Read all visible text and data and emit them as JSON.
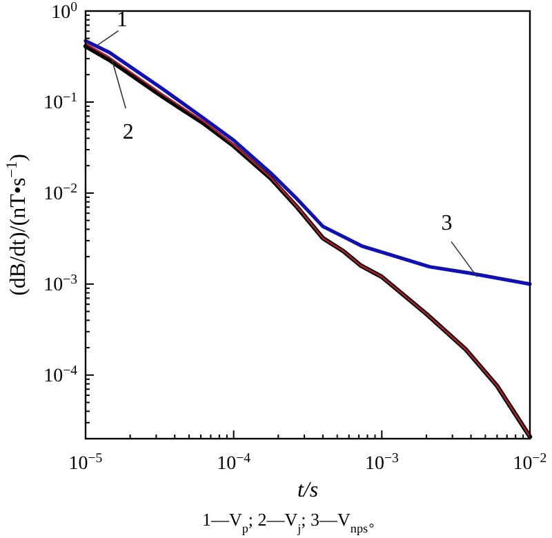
{
  "chart_data": {
    "type": "line",
    "xlabel": "t/s",
    "ylabel": "(dB/dt)/(nT•s$^{−1}$)",
    "log": "xy",
    "grid": false,
    "line_style": "solid",
    "marker": "none",
    "xlim": [
      1e-05,
      0.01
    ],
    "ylim": [
      2e-05,
      1
    ],
    "xticks": [
      {
        "value": 1e-05,
        "label": "10$^{−5}$"
      },
      {
        "value": 0.0001,
        "label": "10$^{−4}$"
      },
      {
        "value": 0.001,
        "label": "10$^{−3}$"
      },
      {
        "value": 0.01,
        "label": "10$^{−2}$"
      }
    ],
    "yticks": [
      {
        "value": 0.0001,
        "label": "10$^{−4}$"
      },
      {
        "value": 0.001,
        "label": "10$^{−3}$"
      },
      {
        "value": 0.01,
        "label": "10$^{−2}$"
      },
      {
        "value": 0.1,
        "label": "10$^{−1}$"
      },
      {
        "value": 1,
        "label": "10$^{0}$"
      }
    ],
    "series": [
      {
        "color": "#000000",
        "x": [
          1e-05,
          1.45e-05,
          3.3e-05,
          6.3e-05,
          0.0001,
          0.000178,
          0.00027,
          0.0004,
          0.00055,
          0.00072,
          0.001,
          0.002,
          0.0037,
          0.006,
          0.01
        ],
        "values": [
          0.41,
          0.29,
          0.115,
          0.058,
          0.033,
          0.0145,
          0.0069,
          0.0032,
          0.0023,
          0.0016,
          0.0012,
          0.00047,
          0.00019,
          7.6e-05,
          2.1e-05
        ]
      },
      {
        "color": "#b0202a",
        "x": [
          1e-05,
          1.45e-05,
          3.3e-05,
          6.3e-05,
          0.0001,
          0.000178,
          0.00027,
          0.0004,
          0.00055,
          0.00072,
          0.001,
          0.002,
          0.0037,
          0.006,
          0.01
        ],
        "values": [
          0.44,
          0.31,
          0.122,
          0.061,
          0.034,
          0.0148,
          0.007,
          0.0032,
          0.0023,
          0.0016,
          0.0012,
          0.00047,
          0.00019,
          7.6e-05,
          2.1e-05
        ]
      },
      {
        "color": "#1010b0",
        "x": [
          1e-05,
          1.45e-05,
          3.3e-05,
          6.3e-05,
          0.0001,
          0.000178,
          0.00027,
          0.0004,
          0.00074,
          0.0021,
          0.0039,
          0.01
        ],
        "values": [
          0.47,
          0.35,
          0.14,
          0.066,
          0.038,
          0.0166,
          0.0085,
          0.0043,
          0.0026,
          0.00155,
          0.00132,
          0.001
        ]
      }
    ],
    "annotations": [
      {
        "text": "1",
        "x": 1.2e-05,
        "y": 0.42
      },
      {
        "text": "2",
        "x": 1.5e-05,
        "y": 0.3
      },
      {
        "text": "3",
        "x": 0.0044,
        "y": 0.0012
      },
      "1—V$_{p}$; 2—V$_{j}$; 3—V$_{nps}$。"
    ]
  }
}
